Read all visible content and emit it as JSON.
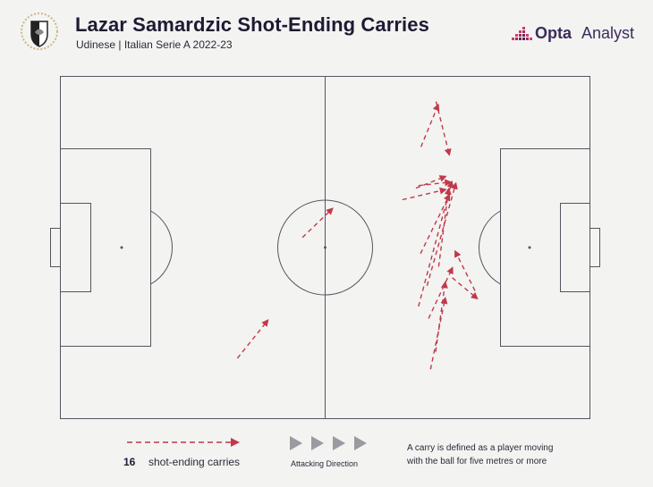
{
  "header": {
    "title": "Lazar Samardzic Shot-Ending Carries",
    "subtitle": "Udinese | Italian Serie A 2022-23",
    "crest_icon": "udinese-crest-icon"
  },
  "brand": {
    "name_bold": "Opta",
    "name_light": "Analyst",
    "logo_icon": "opta-bar-logo-icon"
  },
  "colors": {
    "carry": "#c0394b",
    "pitch_line": "#55555f",
    "background": "#f3f3f1",
    "title": "#1e1a33"
  },
  "legend": {
    "count": "16",
    "label": "shot-ending carries",
    "direction_label": "Attacking Direction",
    "direction_icon": "right-triangle-arrows-icon",
    "note_line1": "A carry is defined as a player moving",
    "note_line2": "with the ball for five metres or more"
  },
  "pitch": {
    "length_m": 105,
    "width_m": 68
  },
  "carries": [
    {
      "x1": 35.1,
      "y1": 12.0,
      "x2": 41.1,
      "y2": 19.5
    },
    {
      "x1": 48.0,
      "y1": 36.0,
      "x2": 53.9,
      "y2": 41.7
    },
    {
      "x1": 71.5,
      "y1": 54.0,
      "x2": 74.9,
      "y2": 62.3
    },
    {
      "x1": 74.5,
      "y1": 63.0,
      "x2": 77.1,
      "y2": 52.5
    },
    {
      "x1": 70.5,
      "y1": 45.8,
      "x2": 76.3,
      "y2": 48.1
    },
    {
      "x1": 67.8,
      "y1": 43.5,
      "x2": 76.3,
      "y2": 45.5
    },
    {
      "x1": 71.0,
      "y1": 46.3,
      "x2": 77.3,
      "y2": 47.0
    },
    {
      "x1": 71.4,
      "y1": 32.8,
      "x2": 77.1,
      "y2": 44.4
    },
    {
      "x1": 71.0,
      "y1": 22.3,
      "x2": 77.6,
      "y2": 47.0
    },
    {
      "x1": 72.7,
      "y1": 26.4,
      "x2": 78.4,
      "y2": 46.7
    },
    {
      "x1": 75.0,
      "y1": 30.2,
      "x2": 77.0,
      "y2": 45.6
    },
    {
      "x1": 73.4,
      "y1": 9.8,
      "x2": 76.3,
      "y2": 23.9
    },
    {
      "x1": 74.4,
      "y1": 13.3,
      "x2": 76.3,
      "y2": 27.0
    },
    {
      "x1": 73.0,
      "y1": 19.9,
      "x2": 77.7,
      "y2": 29.9
    },
    {
      "x1": 77.7,
      "y1": 28.0,
      "x2": 82.6,
      "y2": 23.9
    },
    {
      "x1": 82.2,
      "y1": 25.4,
      "x2": 78.3,
      "y2": 33.2
    }
  ]
}
